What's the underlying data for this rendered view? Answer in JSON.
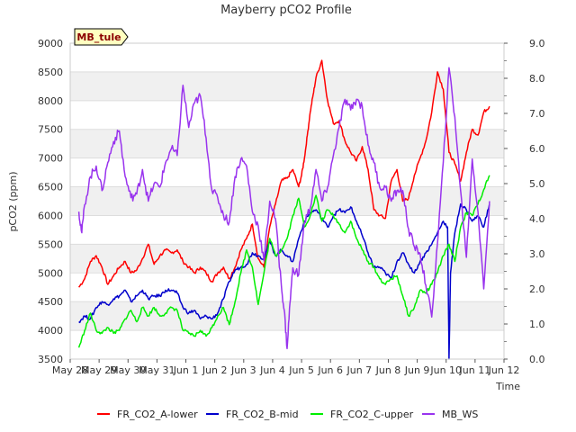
{
  "chart_data": {
    "type": "line",
    "title": "Mayberry pCO2 Profile",
    "site_tag": "MB_tule",
    "xlabel": "Time",
    "ylabel": "pCO2 (ppm)",
    "ylim": [
      3500,
      9000
    ],
    "y2lim": [
      0.0,
      9.0
    ],
    "xlim": [
      0,
      15
    ],
    "yticks": [
      "3500",
      "4000",
      "4500",
      "5000",
      "5500",
      "6000",
      "6500",
      "7000",
      "7500",
      "8000",
      "8500",
      "9000"
    ],
    "y2ticks": [
      "0.0",
      "1.0",
      "2.0",
      "3.0",
      "4.0",
      "5.0",
      "6.0",
      "7.0",
      "8.0",
      "9.0"
    ],
    "xticks": [
      "May 28",
      "May 29",
      "May 30",
      "May 31",
      "Jun 1",
      "Jun 2",
      "Jun 3",
      "Jun 4",
      "Jun 5",
      "Jun 6",
      "Jun 7",
      "Jun 8",
      "Jun 9",
      "Jun 10",
      "Jun 11",
      "Jun 12"
    ],
    "grid": true,
    "legend_position": "bottom",
    "series": [
      {
        "name": "FR_CO2_A-lower",
        "color": "#ff0000",
        "axis": "left",
        "x": [
          0.3,
          0.5,
          0.7,
          0.9,
          1.1,
          1.3,
          1.5,
          1.7,
          1.9,
          2.1,
          2.3,
          2.5,
          2.7,
          2.9,
          3.1,
          3.3,
          3.5,
          3.7,
          3.9,
          4.1,
          4.3,
          4.5,
          4.7,
          4.9,
          5.1,
          5.3,
          5.5,
          5.7,
          5.9,
          6.1,
          6.3,
          6.5,
          6.7,
          6.9,
          7.1,
          7.3,
          7.5,
          7.7,
          7.9,
          8.0,
          8.1,
          8.2,
          8.3,
          8.4,
          8.5,
          8.7,
          8.9,
          9.1,
          9.3,
          9.5,
          9.7,
          9.9,
          10.1,
          10.3,
          10.5,
          10.7,
          10.9,
          11.1,
          11.3,
          11.5,
          11.7,
          11.9,
          12.1,
          12.3,
          12.5,
          12.7,
          12.9,
          13.1,
          13.3,
          13.5,
          13.7,
          13.9,
          14.1,
          14.3,
          14.5
        ],
        "values": [
          4750,
          4900,
          5200,
          5300,
          5100,
          4800,
          4950,
          5100,
          5200,
          5000,
          5050,
          5250,
          5500,
          5150,
          5300,
          5400,
          5350,
          5400,
          5200,
          5100,
          5000,
          5100,
          5000,
          4850,
          5000,
          5100,
          4900,
          5100,
          5400,
          5600,
          5850,
          5250,
          5100,
          5800,
          6200,
          6600,
          6650,
          6800,
          6500,
          6700,
          7000,
          7400,
          7800,
          8100,
          8400,
          8700,
          8000,
          7600,
          7650,
          7300,
          7100,
          6950,
          7200,
          6800,
          6100,
          6000,
          5950,
          6600,
          6800,
          6250,
          6300,
          6700,
          7000,
          7300,
          7800,
          8500,
          8200,
          7100,
          6900,
          6600,
          7100,
          7500,
          7400,
          7800,
          7900
        ]
      },
      {
        "name": "FR_CO2_B-mid",
        "color": "#0000cc",
        "axis": "left",
        "x": [
          0.3,
          0.5,
          0.7,
          0.9,
          1.1,
          1.3,
          1.5,
          1.7,
          1.9,
          2.1,
          2.3,
          2.5,
          2.7,
          2.9,
          3.1,
          3.3,
          3.5,
          3.7,
          3.9,
          4.1,
          4.3,
          4.5,
          4.7,
          4.9,
          5.1,
          5.3,
          5.5,
          5.7,
          5.9,
          6.1,
          6.3,
          6.5,
          6.7,
          6.9,
          7.1,
          7.3,
          7.5,
          7.7,
          7.9,
          8.1,
          8.3,
          8.5,
          8.7,
          8.9,
          9.1,
          9.3,
          9.5,
          9.7,
          9.9,
          10.1,
          10.3,
          10.5,
          10.7,
          10.9,
          11.1,
          11.3,
          11.5,
          11.7,
          11.9,
          12.1,
          12.3,
          12.5,
          12.7,
          12.9,
          13.05,
          13.1,
          13.15,
          13.3,
          13.5,
          13.7,
          13.9,
          14.1,
          14.3,
          14.5
        ],
        "values": [
          4150,
          4250,
          4200,
          4400,
          4500,
          4450,
          4550,
          4600,
          4700,
          4500,
          4600,
          4700,
          4550,
          4600,
          4600,
          4700,
          4700,
          4650,
          4400,
          4300,
          4350,
          4200,
          4250,
          4200,
          4300,
          4550,
          4850,
          5050,
          5100,
          5150,
          5350,
          5300,
          5250,
          5550,
          5300,
          5400,
          5300,
          5200,
          5600,
          5900,
          6050,
          6100,
          5950,
          5800,
          6000,
          6100,
          6050,
          6150,
          5900,
          5650,
          5350,
          5100,
          5100,
          5000,
          4900,
          5200,
          5350,
          5150,
          5000,
          5200,
          5350,
          5500,
          5700,
          5900,
          5800,
          3500,
          5000,
          5700,
          6200,
          6100,
          5900,
          6000,
          5800,
          6200
        ]
      },
      {
        "name": "FR_CO2_C-upper",
        "color": "#00ee00",
        "axis": "left",
        "x": [
          0.3,
          0.5,
          0.7,
          0.9,
          1.1,
          1.3,
          1.5,
          1.7,
          1.9,
          2.1,
          2.3,
          2.5,
          2.7,
          2.9,
          3.1,
          3.3,
          3.5,
          3.7,
          3.9,
          4.1,
          4.3,
          4.5,
          4.7,
          4.9,
          5.1,
          5.3,
          5.5,
          5.7,
          5.9,
          6.1,
          6.3,
          6.5,
          6.7,
          6.9,
          7.1,
          7.3,
          7.5,
          7.7,
          7.9,
          8.1,
          8.3,
          8.5,
          8.7,
          8.9,
          9.1,
          9.3,
          9.5,
          9.7,
          9.9,
          10.1,
          10.3,
          10.5,
          10.7,
          10.9,
          11.1,
          11.3,
          11.5,
          11.7,
          11.9,
          12.1,
          12.3,
          12.5,
          12.7,
          12.9,
          13.1,
          13.3,
          13.5,
          13.7,
          13.9,
          14.1,
          14.3,
          14.5
        ],
        "values": [
          3700,
          4000,
          4300,
          4000,
          3950,
          4050,
          3950,
          4000,
          4200,
          4350,
          4150,
          4400,
          4250,
          4400,
          4250,
          4300,
          4400,
          4350,
          4000,
          3950,
          3900,
          4000,
          3900,
          4050,
          4250,
          4400,
          4100,
          4500,
          5000,
          5400,
          5100,
          4450,
          5000,
          5600,
          5300,
          5400,
          5600,
          6000,
          6300,
          5800,
          6000,
          6350,
          5900,
          6100,
          6000,
          5850,
          5700,
          5900,
          5600,
          5400,
          5200,
          5100,
          4900,
          4800,
          4900,
          4950,
          4600,
          4250,
          4400,
          4700,
          4650,
          4800,
          5000,
          5300,
          5500,
          5200,
          5800,
          6050,
          6000,
          6200,
          6450,
          6700
        ]
      },
      {
        "name": "MB_WS",
        "color": "#9933ee",
        "axis": "right",
        "x": [
          0.3,
          0.4,
          0.5,
          0.7,
          0.9,
          1.1,
          1.3,
          1.5,
          1.7,
          1.9,
          2.1,
          2.3,
          2.5,
          2.7,
          2.9,
          3.1,
          3.3,
          3.5,
          3.7,
          3.9,
          4.1,
          4.3,
          4.5,
          4.7,
          4.9,
          5.1,
          5.3,
          5.5,
          5.7,
          5.9,
          6.1,
          6.3,
          6.5,
          6.7,
          6.9,
          7.1,
          7.3,
          7.4,
          7.5,
          7.6,
          7.7,
          7.9,
          8.1,
          8.3,
          8.5,
          8.7,
          8.9,
          9.1,
          9.3,
          9.5,
          9.7,
          9.9,
          10.1,
          10.3,
          10.5,
          10.7,
          10.9,
          11.1,
          11.3,
          11.5,
          11.7,
          11.9,
          12.1,
          12.3,
          12.5,
          12.7,
          12.9,
          13.1,
          13.3,
          13.5,
          13.7,
          13.9,
          14.1,
          14.3,
          14.5
        ],
        "values": [
          4.2,
          3.6,
          4.4,
          5.2,
          5.5,
          4.8,
          5.6,
          6.2,
          6.5,
          5.2,
          4.6,
          4.7,
          5.4,
          4.5,
          5.0,
          4.9,
          5.6,
          6.0,
          5.8,
          7.8,
          6.6,
          7.3,
          7.5,
          6.3,
          4.8,
          4.6,
          4.1,
          3.9,
          5.2,
          5.7,
          5.5,
          4.2,
          3.8,
          2.8,
          4.5,
          4.0,
          2.1,
          1.4,
          0.3,
          1.6,
          2.6,
          2.4,
          3.9,
          4.3,
          5.4,
          4.5,
          4.9,
          5.8,
          6.6,
          7.4,
          7.1,
          7.4,
          7.2,
          6.1,
          5.6,
          4.9,
          4.9,
          4.5,
          4.8,
          4.8,
          3.7,
          3.2,
          3.0,
          2.1,
          1.2,
          3.3,
          5.6,
          8.3,
          6.9,
          4.8,
          2.9,
          5.7,
          4.2,
          2.0,
          4.5
        ]
      }
    ]
  }
}
